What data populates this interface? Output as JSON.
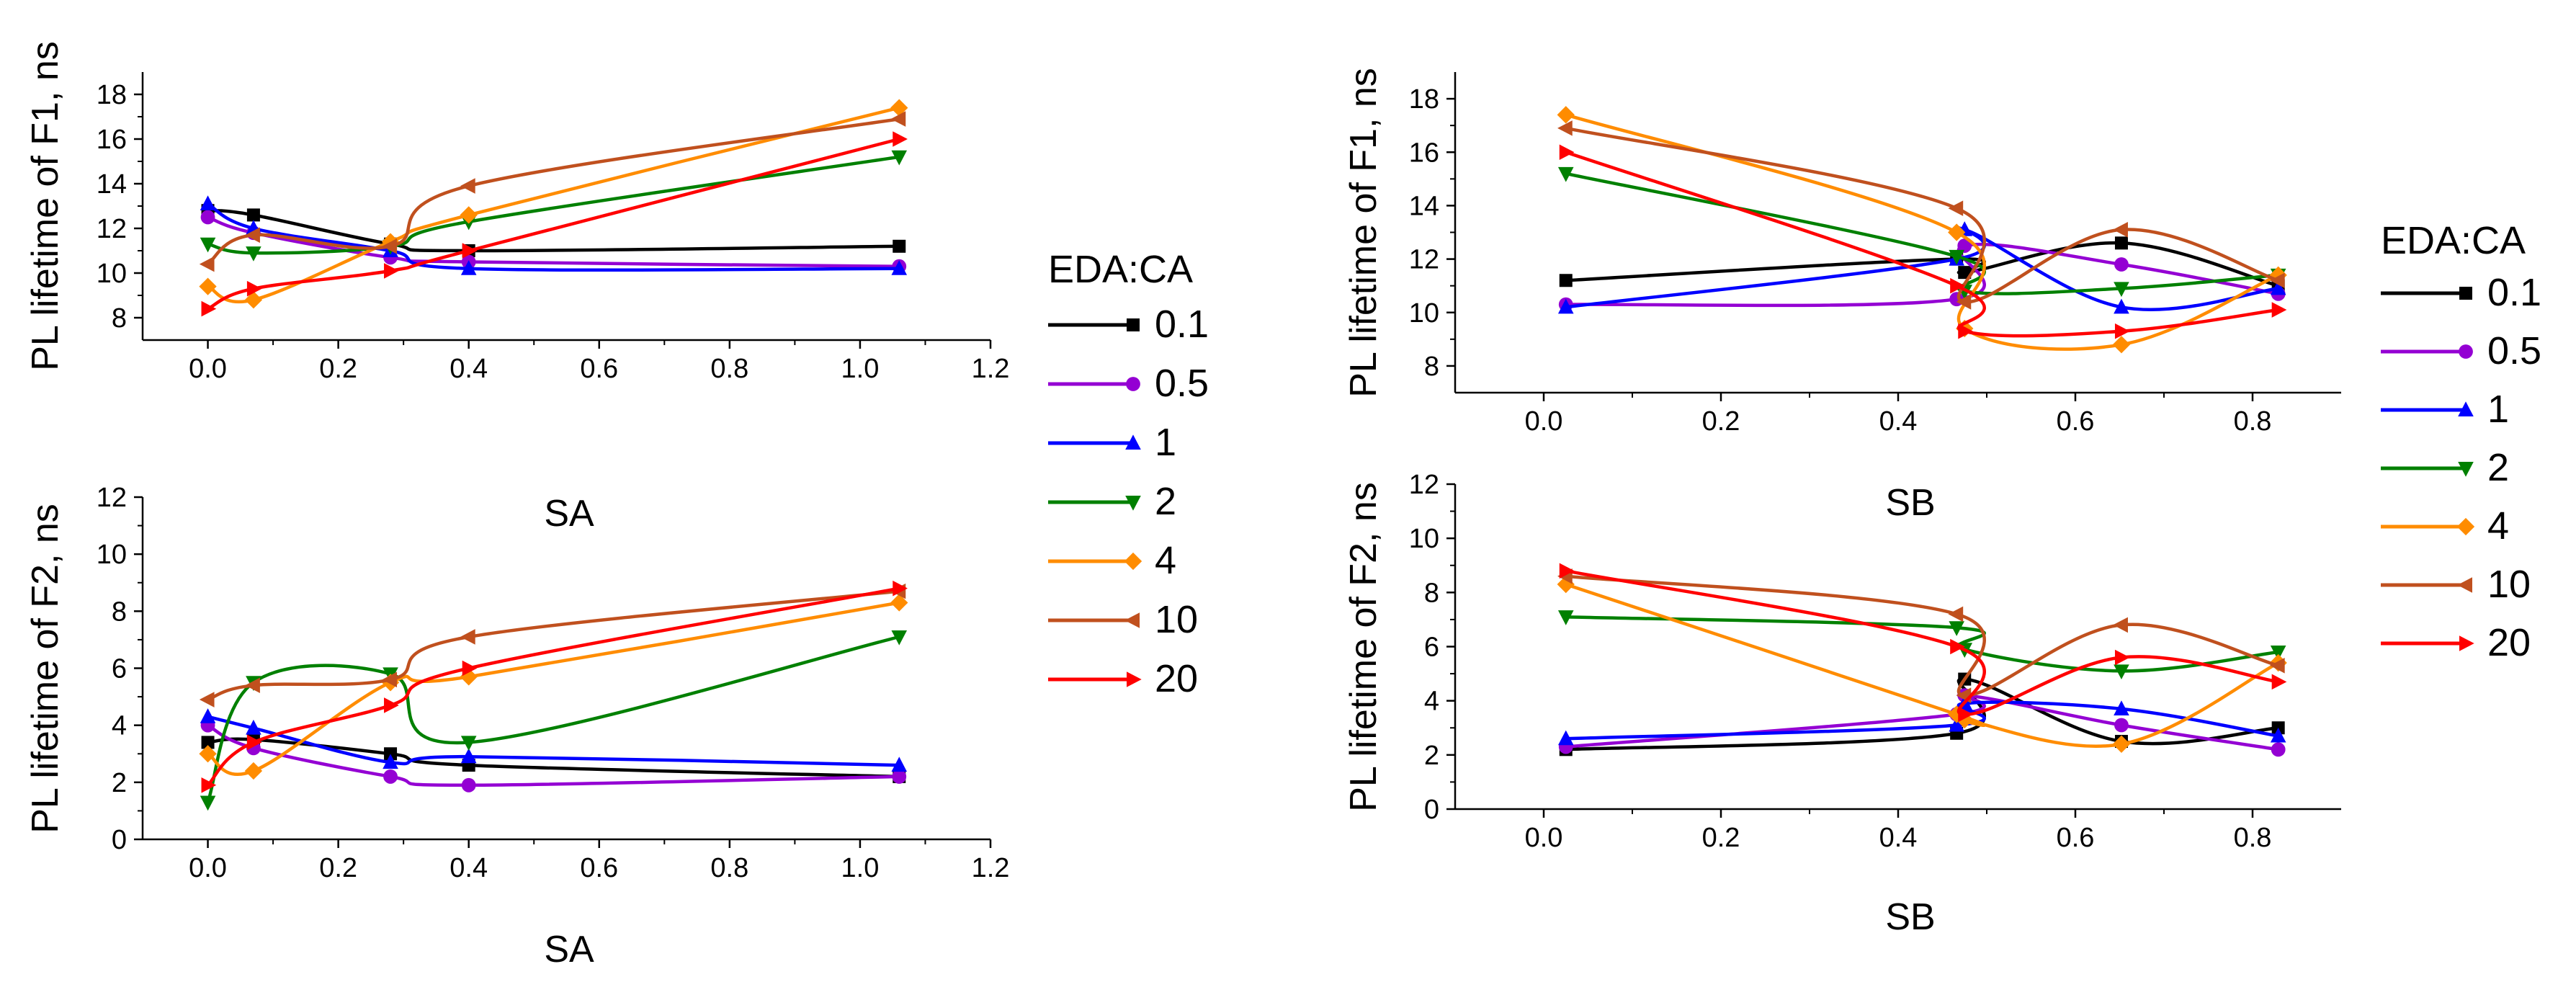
{
  "legend": {
    "title": "EDA:CA",
    "entries": [
      {
        "label": "0.1",
        "color": "#000000",
        "marker": "square"
      },
      {
        "label": "0.5",
        "color": "#9400D3",
        "marker": "circle"
      },
      {
        "label": "1",
        "color": "#0000FF",
        "marker": "triangle-up"
      },
      {
        "label": "2",
        "color": "#008000",
        "marker": "triangle-down"
      },
      {
        "label": "4",
        "color": "#FF8C00",
        "marker": "diamond"
      },
      {
        "label": "10",
        "color": "#C0501E",
        "marker": "triangle-left"
      },
      {
        "label": "20",
        "color": "#FF0000",
        "marker": "triangle-right"
      }
    ]
  },
  "chart_data": [
    {
      "id": "sa-f1",
      "type": "line",
      "xlabel": "SA",
      "ylabel": "PL lifetime of F1, ns",
      "xlim": [
        -0.1,
        1.2
      ],
      "ylim": [
        7,
        19
      ],
      "xticks": [
        "0.0",
        "0.2",
        "0.4",
        "0.6",
        "0.8",
        "1.0",
        "1.2"
      ],
      "xtick_values": [
        0,
        0.2,
        0.4,
        0.6,
        0.8,
        1.0,
        1.2
      ],
      "yticks": [
        "8",
        "10",
        "12",
        "14",
        "16",
        "18"
      ],
      "ytick_values": [
        8,
        10,
        12,
        14,
        16,
        18
      ],
      "series": [
        {
          "name": "0.1",
          "x": [
            0,
            0.07,
            0.28,
            0.4,
            1.06
          ],
          "y": [
            12.8,
            12.6,
            11.3,
            11.0,
            11.2
          ]
        },
        {
          "name": "0.5",
          "x": [
            0,
            0.07,
            0.28,
            0.4,
            1.06
          ],
          "y": [
            12.5,
            11.8,
            10.7,
            10.5,
            10.3
          ]
        },
        {
          "name": "1",
          "x": [
            0,
            0.07,
            0.28,
            0.4,
            1.06
          ],
          "y": [
            13.1,
            12.0,
            11.0,
            10.2,
            10.2
          ]
        },
        {
          "name": "2",
          "x": [
            0,
            0.07,
            0.28,
            0.4,
            1.06
          ],
          "y": [
            11.3,
            10.9,
            11.2,
            12.3,
            15.2
          ]
        },
        {
          "name": "4",
          "x": [
            0,
            0.07,
            0.28,
            0.4,
            1.06
          ],
          "y": [
            9.4,
            8.8,
            11.4,
            12.6,
            17.4
          ]
        },
        {
          "name": "10",
          "x": [
            0,
            0.07,
            0.28,
            0.4,
            1.06
          ],
          "y": [
            10.4,
            11.7,
            11.2,
            13.9,
            16.9
          ]
        },
        {
          "name": "20",
          "x": [
            0,
            0.07,
            0.28,
            0.4,
            1.06
          ],
          "y": [
            8.4,
            9.3,
            10.1,
            11.0,
            16.0
          ]
        }
      ]
    },
    {
      "id": "sa-f2",
      "type": "line",
      "xlabel": "SA",
      "ylabel": "PL lifetime of F2, ns",
      "xlim": [
        -0.1,
        1.2
      ],
      "ylim": [
        0,
        12
      ],
      "xticks": [
        "0.0",
        "0.2",
        "0.4",
        "0.6",
        "0.8",
        "1.0",
        "1.2"
      ],
      "xtick_values": [
        0,
        0.2,
        0.4,
        0.6,
        0.8,
        1.0,
        1.2
      ],
      "yticks": [
        "0",
        "2",
        "4",
        "6",
        "8",
        "10",
        "12"
      ],
      "ytick_values": [
        0,
        2,
        4,
        6,
        8,
        10,
        12
      ],
      "series": [
        {
          "name": "0.1",
          "x": [
            0,
            0.07,
            0.28,
            0.4,
            1.06
          ],
          "y": [
            3.4,
            3.5,
            3.0,
            2.6,
            2.2
          ]
        },
        {
          "name": "0.5",
          "x": [
            0,
            0.07,
            0.28,
            0.4,
            1.06
          ],
          "y": [
            4.0,
            3.2,
            2.2,
            1.9,
            2.2
          ]
        },
        {
          "name": "1",
          "x": [
            0,
            0.07,
            0.28,
            0.4,
            1.06
          ],
          "y": [
            4.3,
            3.9,
            2.7,
            2.9,
            2.6
          ]
        },
        {
          "name": "2",
          "x": [
            0,
            0.07,
            0.28,
            0.4,
            1.06
          ],
          "y": [
            1.3,
            5.5,
            5.8,
            3.4,
            7.1
          ]
        },
        {
          "name": "4",
          "x": [
            0,
            0.07,
            0.28,
            0.4,
            1.06
          ],
          "y": [
            3.0,
            2.4,
            5.5,
            5.7,
            8.3
          ]
        },
        {
          "name": "10",
          "x": [
            0,
            0.07,
            0.28,
            0.4,
            1.06
          ],
          "y": [
            4.9,
            5.4,
            5.6,
            7.1,
            8.7
          ]
        },
        {
          "name": "20",
          "x": [
            0,
            0.07,
            0.28,
            0.4,
            1.06
          ],
          "y": [
            1.9,
            3.4,
            4.7,
            6.0,
            8.8
          ]
        }
      ]
    },
    {
      "id": "sb-f1",
      "type": "line",
      "xlabel": "SB",
      "ylabel": "PL lifetime of F1, ns",
      "xlim": [
        -0.1,
        0.9
      ],
      "ylim": [
        7,
        19
      ],
      "xticks": [
        "0.0",
        "0.2",
        "0.4",
        "0.6",
        "0.8"
      ],
      "xtick_values": [
        0,
        0.2,
        0.4,
        0.6,
        0.8
      ],
      "yticks": [
        "8",
        "10",
        "12",
        "14",
        "16",
        "18"
      ],
      "ytick_values": [
        8,
        10,
        12,
        14,
        16,
        18
      ],
      "series": [
        {
          "name": "0.1",
          "x": [
            0.025,
            0.466,
            0.475,
            0.652,
            0.829
          ],
          "y": [
            11.2,
            12.0,
            11.5,
            12.6,
            11.0
          ]
        },
        {
          "name": "0.5",
          "x": [
            0.025,
            0.466,
            0.475,
            0.652,
            0.829
          ],
          "y": [
            10.3,
            10.5,
            12.5,
            11.8,
            10.7
          ]
        },
        {
          "name": "1",
          "x": [
            0.025,
            0.466,
            0.475,
            0.652,
            0.829
          ],
          "y": [
            10.2,
            12.0,
            13.1,
            10.2,
            10.9
          ]
        },
        {
          "name": "2",
          "x": [
            0.025,
            0.466,
            0.475,
            0.652,
            0.829
          ],
          "y": [
            15.2,
            12.1,
            10.8,
            10.9,
            11.4
          ]
        },
        {
          "name": "4",
          "x": [
            0.025,
            0.466,
            0.475,
            0.652,
            0.829
          ],
          "y": [
            17.4,
            13.0,
            9.4,
            8.8,
            11.4
          ]
        },
        {
          "name": "10",
          "x": [
            0.025,
            0.466,
            0.475,
            0.652,
            0.829
          ],
          "y": [
            16.9,
            13.9,
            10.4,
            13.1,
            11.2
          ]
        },
        {
          "name": "20",
          "x": [
            0.025,
            0.466,
            0.475,
            0.652,
            0.829
          ],
          "y": [
            16.0,
            11.0,
            9.3,
            9.3,
            10.1
          ]
        }
      ]
    },
    {
      "id": "sb-f2",
      "type": "line",
      "xlabel": "SB",
      "ylabel": "PL lifetime of F2, ns",
      "xlim": [
        -0.1,
        0.9
      ],
      "ylim": [
        0,
        12
      ],
      "xticks": [
        "0.0",
        "0.2",
        "0.4",
        "0.6",
        "0.8"
      ],
      "xtick_values": [
        0,
        0.2,
        0.4,
        0.6,
        0.8
      ],
      "yticks": [
        "0",
        "2",
        "4",
        "6",
        "8",
        "10",
        "12"
      ],
      "ytick_values": [
        0,
        2,
        4,
        6,
        8,
        10,
        12
      ],
      "series": [
        {
          "name": "0.1",
          "x": [
            0.025,
            0.466,
            0.475,
            0.652,
            0.829
          ],
          "y": [
            2.2,
            2.8,
            4.8,
            2.5,
            3.0
          ]
        },
        {
          "name": "0.5",
          "x": [
            0.025,
            0.466,
            0.475,
            0.652,
            0.829
          ],
          "y": [
            2.3,
            3.5,
            4.2,
            3.1,
            2.2
          ]
        },
        {
          "name": "1",
          "x": [
            0.025,
            0.466,
            0.475,
            0.652,
            0.829
          ],
          "y": [
            2.6,
            3.1,
            3.9,
            3.7,
            2.7
          ]
        },
        {
          "name": "2",
          "x": [
            0.025,
            0.466,
            0.475,
            0.652,
            0.829
          ],
          "y": [
            7.1,
            6.7,
            5.9,
            5.1,
            5.8
          ]
        },
        {
          "name": "4",
          "x": [
            0.025,
            0.466,
            0.475,
            0.652,
            0.829
          ],
          "y": [
            8.3,
            3.5,
            3.3,
            2.4,
            5.4
          ]
        },
        {
          "name": "10",
          "x": [
            0.025,
            0.466,
            0.475,
            0.652,
            0.829
          ],
          "y": [
            8.6,
            7.2,
            4.2,
            6.8,
            5.3
          ]
        },
        {
          "name": "20",
          "x": [
            0.025,
            0.466,
            0.475,
            0.652,
            0.829
          ],
          "y": [
            8.8,
            6.0,
            3.5,
            5.6,
            4.7
          ]
        }
      ]
    }
  ]
}
